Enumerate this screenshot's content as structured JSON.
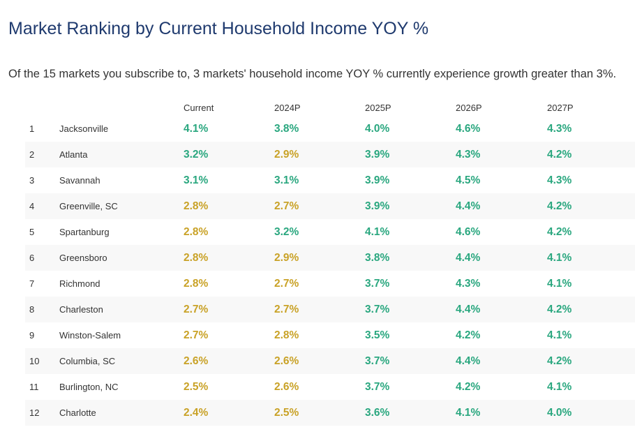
{
  "title": "Market Ranking by Current Household Income YOY %",
  "subtitle": "Of the 15 markets you subscribe to, 3 markets' household income YOY % currently experience growth greater than 3%.",
  "colors": {
    "above_3pct": "#2aa77f",
    "at_or_below_3pct": "#c9a227",
    "title": "#1f3a6e"
  },
  "columns": [
    "Current",
    "2024P",
    "2025P",
    "2026P",
    "2027P"
  ],
  "rows": [
    {
      "rank": "1",
      "market": "Jacksonville",
      "values": [
        "4.1%",
        "3.8%",
        "4.0%",
        "4.6%",
        "4.3%"
      ],
      "colors": [
        "green",
        "green",
        "green",
        "green",
        "green"
      ]
    },
    {
      "rank": "2",
      "market": "Atlanta",
      "values": [
        "3.2%",
        "2.9%",
        "3.9%",
        "4.3%",
        "4.2%"
      ],
      "colors": [
        "green",
        "gold",
        "green",
        "green",
        "green"
      ]
    },
    {
      "rank": "3",
      "market": "Savannah",
      "values": [
        "3.1%",
        "3.1%",
        "3.9%",
        "4.5%",
        "4.3%"
      ],
      "colors": [
        "green",
        "green",
        "green",
        "green",
        "green"
      ]
    },
    {
      "rank": "4",
      "market": "Greenville, SC",
      "values": [
        "2.8%",
        "2.7%",
        "3.9%",
        "4.4%",
        "4.2%"
      ],
      "colors": [
        "gold",
        "gold",
        "green",
        "green",
        "green"
      ]
    },
    {
      "rank": "5",
      "market": "Spartanburg",
      "values": [
        "2.8%",
        "3.2%",
        "4.1%",
        "4.6%",
        "4.2%"
      ],
      "colors": [
        "gold",
        "green",
        "green",
        "green",
        "green"
      ]
    },
    {
      "rank": "6",
      "market": "Greensboro",
      "values": [
        "2.8%",
        "2.9%",
        "3.8%",
        "4.4%",
        "4.1%"
      ],
      "colors": [
        "gold",
        "gold",
        "green",
        "green",
        "green"
      ]
    },
    {
      "rank": "7",
      "market": "Richmond",
      "values": [
        "2.8%",
        "2.7%",
        "3.7%",
        "4.3%",
        "4.1%"
      ],
      "colors": [
        "gold",
        "gold",
        "green",
        "green",
        "green"
      ]
    },
    {
      "rank": "8",
      "market": "Charleston",
      "values": [
        "2.7%",
        "2.7%",
        "3.7%",
        "4.4%",
        "4.2%"
      ],
      "colors": [
        "gold",
        "gold",
        "green",
        "green",
        "green"
      ]
    },
    {
      "rank": "9",
      "market": "Winston-Salem",
      "values": [
        "2.7%",
        "2.8%",
        "3.5%",
        "4.2%",
        "4.1%"
      ],
      "colors": [
        "gold",
        "gold",
        "green",
        "green",
        "green"
      ]
    },
    {
      "rank": "10",
      "market": "Columbia, SC",
      "values": [
        "2.6%",
        "2.6%",
        "3.7%",
        "4.4%",
        "4.2%"
      ],
      "colors": [
        "gold",
        "gold",
        "green",
        "green",
        "green"
      ]
    },
    {
      "rank": "11",
      "market": "Burlington, NC",
      "values": [
        "2.5%",
        "2.6%",
        "3.7%",
        "4.2%",
        "4.1%"
      ],
      "colors": [
        "gold",
        "gold",
        "green",
        "green",
        "green"
      ]
    },
    {
      "rank": "12",
      "market": "Charlotte",
      "values": [
        "2.4%",
        "2.5%",
        "3.6%",
        "4.1%",
        "4.0%"
      ],
      "colors": [
        "gold",
        "gold",
        "green",
        "green",
        "green"
      ]
    }
  ]
}
